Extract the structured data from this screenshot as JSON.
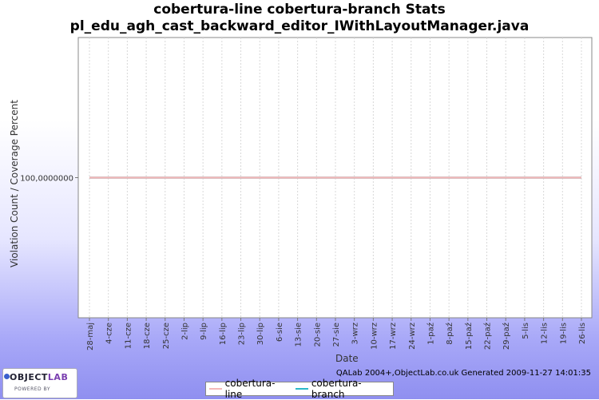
{
  "chart_data": {
    "type": "line",
    "title": "cobertura-line cobertura-branch  Stats",
    "subtitle": "pl_edu_agh_cast_backward_editor_IWithLayoutManager.java",
    "xlabel": "Date",
    "ylabel": "Violation Count / Coverage Percent",
    "x": [
      "28-maj",
      "4-cze",
      "11-cze",
      "18-cze",
      "25-cze",
      "2-lip",
      "9-lip",
      "16-lip",
      "23-lip",
      "30-lip",
      "6-sie",
      "13-sie",
      "20-sie",
      "27-sie",
      "3-wrz",
      "10-wrz",
      "17-wrz",
      "24-wrz",
      "1-paź",
      "8-paź",
      "15-paź",
      "22-paź",
      "29-paź",
      "5-lis",
      "12-lis",
      "19-lis",
      "26-lis"
    ],
    "y_ticks": [
      "100,0000000"
    ],
    "ylim": [
      99.95,
      100.05
    ],
    "grid": true,
    "legend_position": "bottom",
    "series": [
      {
        "name": "cobertura-line",
        "color": "#f4b8b8",
        "values": [
          100,
          100,
          100,
          100,
          100,
          100,
          100,
          100,
          100,
          100,
          100,
          100,
          100,
          100,
          100,
          100,
          100,
          100,
          100,
          100,
          100,
          100,
          100,
          100,
          100,
          100,
          100
        ]
      },
      {
        "name": "cobertura-branch",
        "color": "#2ab8c8",
        "values": [
          100,
          100,
          100,
          100,
          100,
          100,
          100,
          100,
          100,
          100,
          100,
          100,
          100,
          100,
          100,
          100,
          100,
          100,
          100,
          100,
          100,
          100,
          100,
          100,
          100,
          100,
          100
        ]
      }
    ]
  },
  "footer": "QALab 2004+,ObjectLab.co.uk Generated 2009-11-27 14:01:35",
  "logo": {
    "main_a": "OBJECT",
    "main_b": "LAB",
    "sub": "POWERED BY"
  }
}
